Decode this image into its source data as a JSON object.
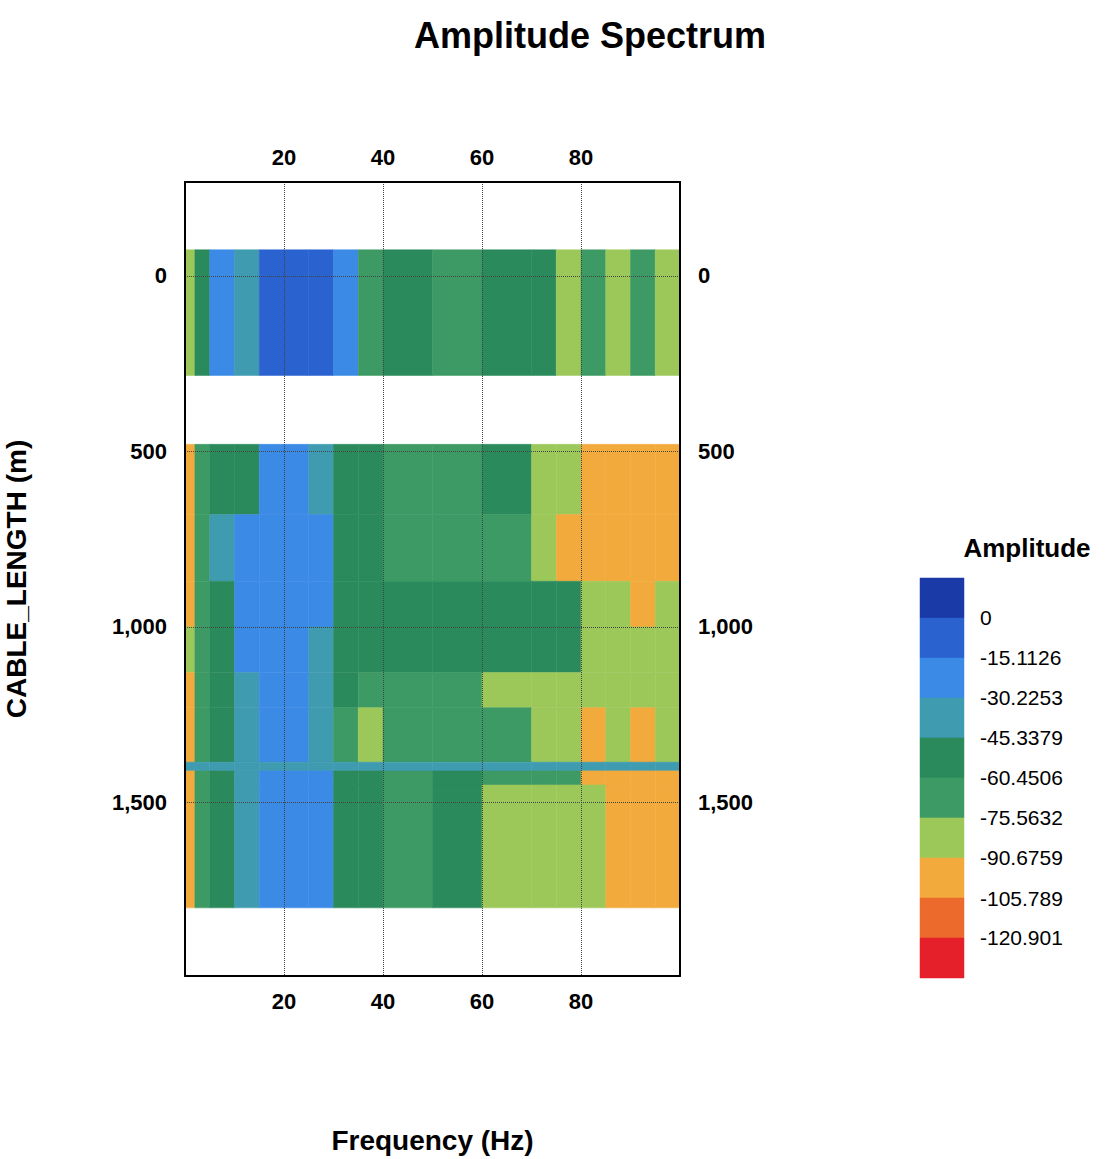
{
  "chart_data": {
    "type": "heatmap",
    "title": "Amplitude Spectrum",
    "x_label": "Frequency (Hz)",
    "y_label": "CABLE_LENGTH (m)",
    "xlim": [
      0,
      100
    ],
    "xticks": [
      20,
      40,
      60,
      80
    ],
    "ylim": [
      -267,
      1994
    ],
    "yticks": [
      0,
      500,
      1000,
      1500
    ],
    "grid": true,
    "x_edges": [
      0,
      2,
      5,
      10,
      15,
      20,
      25,
      30,
      35,
      40,
      50,
      60,
      70,
      75,
      80,
      85,
      90,
      95,
      100
    ],
    "y_edges": [
      -74,
      284,
      480,
      680,
      870,
      1000,
      1130,
      1230,
      1385,
      1410,
      1450,
      1800
    ],
    "cells": [
      [
        -83,
        -52,
        -22,
        -38,
        -7,
        -7,
        -7,
        -22,
        -68,
        -52,
        -68,
        -52,
        -52,
        -83,
        -68,
        -83,
        -68,
        -83
      ],
      [
        null,
        null,
        null,
        null,
        null,
        null,
        null,
        null,
        null,
        null,
        null,
        null,
        null,
        null,
        null,
        null,
        null,
        null
      ],
      [
        -98,
        -68,
        -52,
        -52,
        -22,
        -22,
        -38,
        -52,
        -52,
        -68,
        -68,
        -52,
        -83,
        -83,
        -98,
        -98,
        -98,
        -98
      ],
      [
        -98,
        -68,
        -38,
        -22,
        -22,
        -22,
        -22,
        -52,
        -52,
        -68,
        -68,
        -68,
        -83,
        -98,
        -98,
        -98,
        -98,
        -98
      ],
      [
        -98,
        -68,
        -52,
        -22,
        -22,
        -22,
        -22,
        -52,
        -52,
        -52,
        -52,
        -52,
        -52,
        -52,
        -83,
        -83,
        -98,
        -83
      ],
      [
        -83,
        -68,
        -52,
        -22,
        -22,
        -22,
        -38,
        -52,
        -52,
        -52,
        -52,
        -52,
        -52,
        -52,
        -83,
        -83,
        -83,
        -83
      ],
      [
        -98,
        -68,
        -52,
        -38,
        -22,
        -22,
        -38,
        -52,
        -68,
        -68,
        -68,
        -83,
        -83,
        -83,
        -83,
        -83,
        -83,
        -83
      ],
      [
        -98,
        -68,
        -52,
        -38,
        -22,
        -22,
        -38,
        -68,
        -83,
        -68,
        -68,
        -68,
        -83,
        -83,
        -98,
        -83,
        -98,
        -83
      ],
      [
        -38,
        -38,
        -38,
        -38,
        -38,
        -38,
        -38,
        -38,
        -38,
        -38,
        -38,
        -38,
        -38,
        -38,
        -38,
        -38,
        -38,
        -38
      ],
      [
        -98,
        -68,
        -52,
        -38,
        -22,
        -22,
        -22,
        -52,
        -52,
        -68,
        -52,
        -68,
        -68,
        -68,
        -98,
        -98,
        -98,
        -98
      ],
      [
        -98,
        -68,
        -52,
        -38,
        -22,
        -22,
        -22,
        -52,
        -52,
        -68,
        -52,
        -83,
        -83,
        -83,
        -83,
        -98,
        -98,
        -98
      ]
    ],
    "colorbar": {
      "label": "Amplitude",
      "range": [
        -136.014,
        15.1126
      ],
      "ticks": [
        0,
        -15.1126,
        -30.2253,
        -45.3379,
        -60.4506,
        -75.5632,
        -90.6759,
        -105.789,
        -120.901
      ],
      "colors": [
        "#1a3aa8",
        "#2a63d0",
        "#3a8ae6",
        "#3f9bb0",
        "#2a8a5c",
        "#3d9a64",
        "#9cc85a",
        "#f2aa3c",
        "#ec6a2c",
        "#e6202a"
      ]
    }
  }
}
